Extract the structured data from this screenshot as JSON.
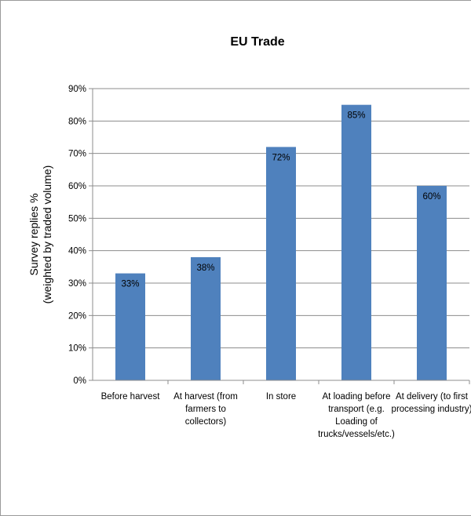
{
  "chart_data": {
    "type": "bar",
    "title": "EU Trade",
    "ylabel_lines": [
      "Survey replies %",
      "(weighted by traded volume)"
    ],
    "categories": [
      [
        "Before harvest"
      ],
      [
        "At harvest (from",
        "farmers to",
        "collectors)"
      ],
      [
        "In store"
      ],
      [
        "At loading before",
        "transport (e.g.",
        "Loading of",
        "trucks/vessels/etc.)"
      ],
      [
        "At delivery (to first",
        "processing industry)"
      ]
    ],
    "values": [
      33,
      38,
      72,
      85,
      60
    ],
    "data_labels": [
      "33%",
      "38%",
      "72%",
      "85%",
      "60%"
    ],
    "ylim": [
      0,
      90
    ],
    "yticks": [
      0,
      10,
      20,
      30,
      40,
      50,
      60,
      70,
      80,
      90
    ],
    "ytick_labels": [
      "0%",
      "10%",
      "20%",
      "30%",
      "40%",
      "50%",
      "60%",
      "70%",
      "80%",
      "90%"
    ],
    "grid": true,
    "bar_color": "#4f81bd",
    "grid_color": "#8c8c8c"
  }
}
